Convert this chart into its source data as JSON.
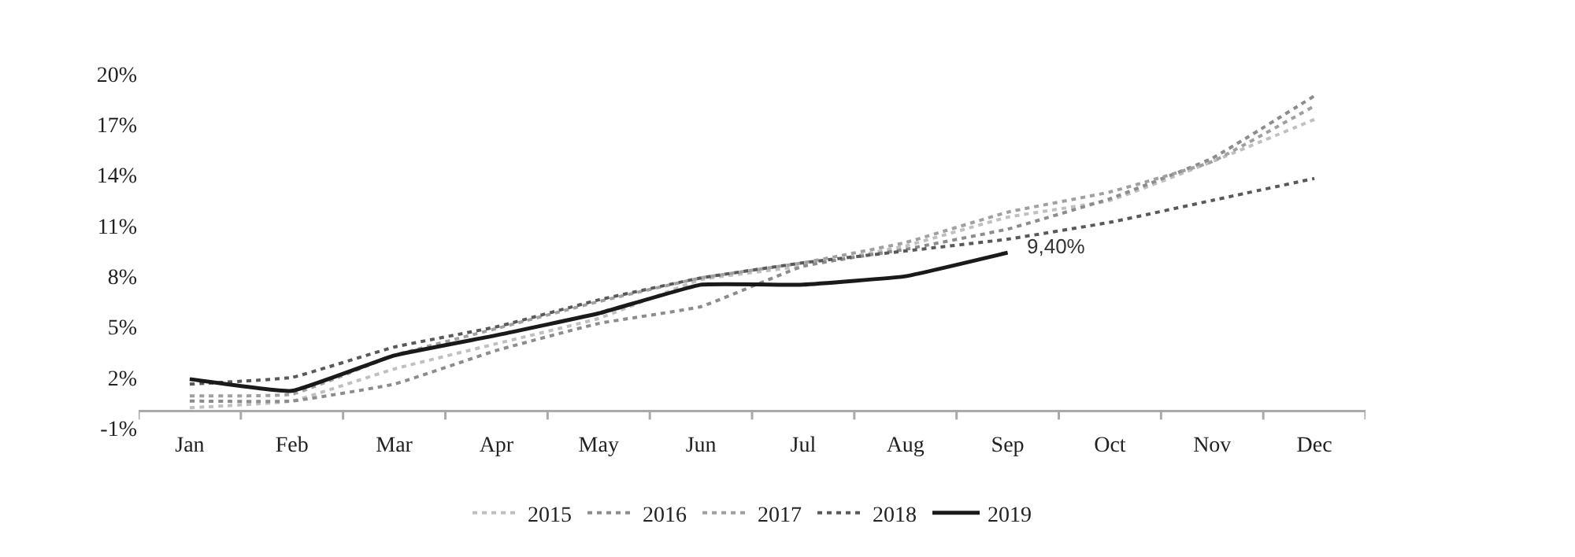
{
  "chart_data": {
    "type": "line",
    "categories": [
      "Jan",
      "Feb",
      "Mar",
      "Apr",
      "May",
      "Jun",
      "Jul",
      "Aug",
      "Sep",
      "Oct",
      "Nov",
      "Dec"
    ],
    "series": [
      {
        "name": "2015",
        "color": "#c0c0c0",
        "line_style": "dotted",
        "values": [
          0.2,
          0.6,
          2.5,
          4.0,
          5.5,
          7.8,
          8.6,
          9.8,
          11.5,
          12.5,
          14.8,
          17.3
        ]
      },
      {
        "name": "2016",
        "color": "#8c8c8c",
        "line_style": "dotted",
        "values": [
          0.6,
          0.6,
          1.6,
          3.6,
          5.2,
          6.2,
          8.6,
          9.6,
          10.8,
          12.6,
          15.0,
          18.7
        ]
      },
      {
        "name": "2017",
        "color": "#a0a0a0",
        "line_style": "dotted",
        "values": [
          0.9,
          1.0,
          3.3,
          4.9,
          6.5,
          7.9,
          8.8,
          10.0,
          11.8,
          13.0,
          14.8,
          18.1
        ]
      },
      {
        "name": "2018",
        "color": "#595959",
        "line_style": "dotted",
        "values": [
          1.6,
          2.0,
          3.8,
          5.0,
          6.6,
          7.9,
          8.8,
          9.5,
          10.2,
          11.2,
          12.5,
          13.8
        ]
      },
      {
        "name": "2019",
        "color": "#1a1a1a",
        "line_style": "solid",
        "values": [
          1.9,
          1.2,
          3.3,
          4.5,
          5.8,
          7.5,
          7.5,
          8.0,
          9.4,
          null,
          null,
          null
        ]
      }
    ],
    "ylim": [
      -1,
      20
    ],
    "yticks": [
      {
        "value": -1,
        "label": "-1%"
      },
      {
        "value": 2,
        "label": "2%"
      },
      {
        "value": 5,
        "label": "5%"
      },
      {
        "value": 8,
        "label": "8%"
      },
      {
        "value": 11,
        "label": "11%"
      },
      {
        "value": 14,
        "label": "14%"
      },
      {
        "value": 17,
        "label": "17%"
      },
      {
        "value": 20,
        "label": "20%"
      }
    ],
    "annotations": [
      {
        "text": "9,40%",
        "x": "Sep",
        "y": 9.4
      }
    ],
    "grid": false,
    "legend": "bottom",
    "marker": "none"
  }
}
